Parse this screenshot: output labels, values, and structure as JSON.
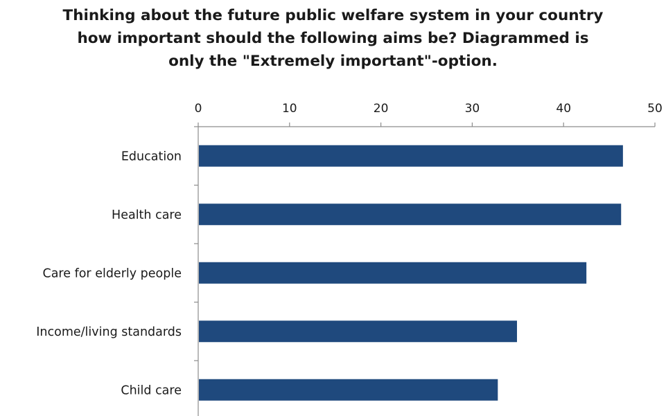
{
  "chart_data": {
    "type": "bar",
    "orientation": "horizontal",
    "title_lines": [
      "Thinking about the future public welfare system in your country",
      "how important should the following aims be? Diagrammed is",
      "only the \"Extremely important\"-option."
    ],
    "categories": [
      "Education",
      "Health care",
      "Care for elderly people",
      "Income/living standards",
      "Child care"
    ],
    "values": [
      46.5,
      46.3,
      42.5,
      34.9,
      32.8
    ],
    "xlim": [
      0,
      50
    ],
    "x_ticks": [
      "0",
      "10",
      "20",
      "30",
      "40",
      "50"
    ],
    "xlabel": "",
    "ylabel": "",
    "grid": false,
    "legend": "none",
    "axis_position": "top",
    "bar_color": "#1f497d",
    "axis_color": "#8c8c8c"
  }
}
